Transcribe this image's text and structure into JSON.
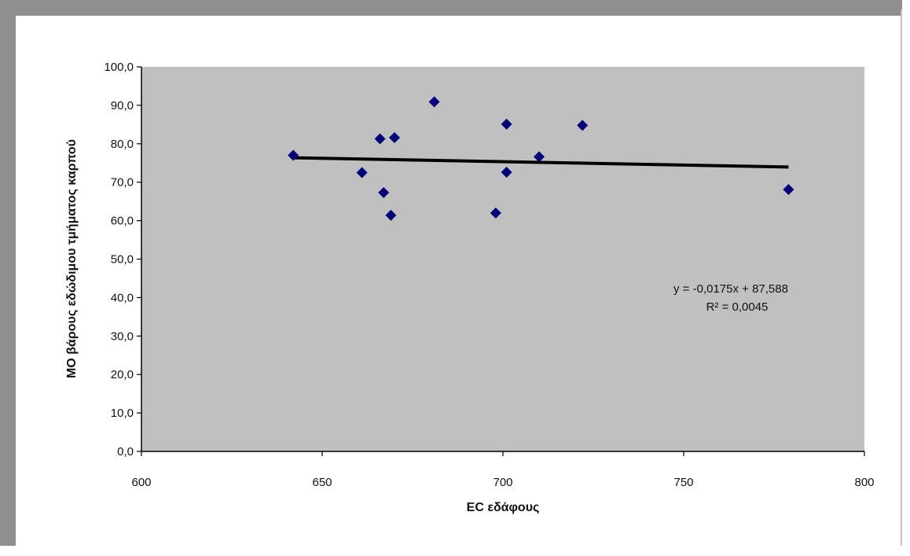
{
  "chart_data": {
    "type": "scatter",
    "xlabel": "EC εδάφους",
    "ylabel": "ΜΟ βάρους εδώδιμου τμήματος καρπού",
    "xlim": [
      600,
      800
    ],
    "ylim": [
      0,
      100
    ],
    "x_ticks": [
      "600",
      "650",
      "700",
      "750",
      "800"
    ],
    "y_ticks": [
      "0,0",
      "10,0",
      "20,0",
      "30,0",
      "40,0",
      "50,0",
      "60,0",
      "70,0",
      "80,0",
      "90,0",
      "100,0"
    ],
    "x_tick_values": [
      600,
      650,
      700,
      750,
      800
    ],
    "y_tick_values": [
      0,
      10,
      20,
      30,
      40,
      50,
      60,
      70,
      80,
      90,
      100
    ],
    "gridlines": false,
    "plot_background": "#c0c0c0",
    "marker_color": "#00007a",
    "trendline_color": "#000000",
    "series": [
      {
        "marker": "diamond",
        "points": [
          {
            "x": 642,
            "y": 77.0
          },
          {
            "x": 661,
            "y": 72.5
          },
          {
            "x": 666,
            "y": 81.3
          },
          {
            "x": 667,
            "y": 67.3
          },
          {
            "x": 669,
            "y": 61.4
          },
          {
            "x": 670,
            "y": 81.6
          },
          {
            "x": 681,
            "y": 90.9
          },
          {
            "x": 698,
            "y": 62.0
          },
          {
            "x": 701,
            "y": 85.1
          },
          {
            "x": 701,
            "y": 72.6
          },
          {
            "x": 710,
            "y": 76.6
          },
          {
            "x": 722,
            "y": 84.8
          },
          {
            "x": 779,
            "y": 68.1
          }
        ]
      }
    ],
    "trendline": {
      "slope": -0.0175,
      "intercept": 87.588,
      "x_range": [
        642,
        779
      ]
    },
    "annotations": [
      "y = -0,0175x + 87,588",
      "R² = 0,0045"
    ]
  }
}
